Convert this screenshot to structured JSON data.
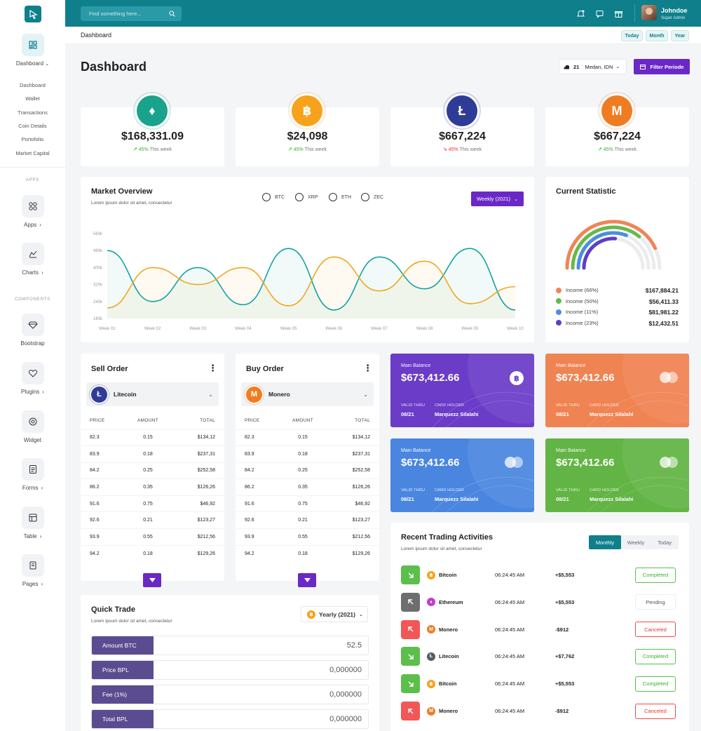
{
  "user": {
    "name": "Johndoe",
    "role": "Super Admin"
  },
  "search": {
    "placeholder": "Find something here..."
  },
  "breadcrumb": "Dashboard",
  "range_tabs": [
    "Today",
    "Month",
    "Year"
  ],
  "page_title": "Dashboard",
  "weather": {
    "temp": "21",
    "location": "Medan, IDN"
  },
  "filter_label": "Filter Periode",
  "sidebar": {
    "main_label": "Dashboard",
    "sub_items": [
      "Dashboard",
      "Wallet",
      "Transactions",
      "Coin Details",
      "Portofolio",
      "Market Capital"
    ],
    "apps_heading": "APPS",
    "components_heading": "COMPONENTS",
    "items": [
      {
        "label": "Apps",
        "icon": "apps-icon"
      },
      {
        "label": "Charts",
        "icon": "chart-icon"
      },
      {
        "label": "Bootstrap",
        "icon": "gem-icon"
      },
      {
        "label": "Plugins",
        "icon": "heart-icon"
      },
      {
        "label": "Widget",
        "icon": "widget-icon"
      },
      {
        "label": "Forms",
        "icon": "form-icon"
      },
      {
        "label": "Table",
        "icon": "table-icon"
      },
      {
        "label": "Pages",
        "icon": "pages-icon"
      }
    ]
  },
  "coins": [
    {
      "value": "$168,331.09",
      "change": "45%",
      "suffix": "This week",
      "trend": "up",
      "color": "#1aa38c",
      "icon": "ethereum-icon"
    },
    {
      "value": "$24,098",
      "change": "45%",
      "suffix": "This week",
      "trend": "up",
      "color": "#f7a21b",
      "icon": "bitcoin-icon"
    },
    {
      "value": "$667,224",
      "change": "45%",
      "suffix": "This week",
      "trend": "down",
      "color": "#2f3c97",
      "icon": "litecoin-icon"
    },
    {
      "value": "$667,224",
      "change": "45%",
      "suffix": "This week",
      "trend": "up",
      "color": "#f07c22",
      "icon": "monero-icon"
    }
  ],
  "market_overview": {
    "title": "Market Overview",
    "subtitle": "Lorem ipsum dolor sit amet, consectetur",
    "options": [
      "BTC",
      "XRP",
      "ETH",
      "ZEC"
    ],
    "period": "Weekly (2021)"
  },
  "chart_data": {
    "type": "line",
    "x": [
      "Week 01",
      "Week 02",
      "Week 03",
      "Week 04",
      "Week 05",
      "Week 06",
      "Week 07",
      "Week 08",
      "Week 09",
      "Week 10"
    ],
    "yticks": [
      "160k",
      "240k",
      "320k",
      "400k",
      "480k",
      "560k"
    ],
    "ylim": [
      160,
      560
    ],
    "series": [
      {
        "color": "#12a3a0",
        "values": [
          480,
          240,
          400,
          225,
          490,
          200,
          450,
          300,
          490,
          200
        ]
      },
      {
        "color": "#f0a61e",
        "values": [
          210,
          400,
          320,
          400,
          220,
          450,
          290,
          430,
          230,
          310
        ]
      }
    ]
  },
  "current_statistic": {
    "title": "Current Statistic",
    "items": [
      {
        "label": "Income (66%)",
        "value": "$167,884.21",
        "color": "#f08458",
        "pct": 66
      },
      {
        "label": "Income (50%)",
        "value": "$56,411.33",
        "color": "#69b84a",
        "pct": 50
      },
      {
        "label": "Income (11%)",
        "value": "$81,981.22",
        "color": "#4a8fe0",
        "pct": 11
      },
      {
        "label": "Income (23%)",
        "value": "$12,432.51",
        "color": "#5e3ec4",
        "pct": 23
      }
    ]
  },
  "sell_order": {
    "title": "Sell Order",
    "coin": "Litecoin",
    "headers": [
      "PRICE",
      "AMOUNT",
      "TOTAL"
    ],
    "rows": [
      [
        "82.3",
        "0.15",
        "$134,12"
      ],
      [
        "83.9",
        "0.18",
        "$237,31"
      ],
      [
        "84.2",
        "0.25",
        "$252,58"
      ],
      [
        "86.2",
        "0.35",
        "$126,26"
      ],
      [
        "91.6",
        "0.75",
        "$46,92"
      ],
      [
        "92.6",
        "0.21",
        "$123,27"
      ],
      [
        "93.9",
        "0.55",
        "$212,56"
      ],
      [
        "94.2",
        "0.18",
        "$129,26"
      ]
    ]
  },
  "buy_order": {
    "title": "Buy Order",
    "coin": "Monero",
    "headers": [
      "PRICE",
      "AMOUNT",
      "TOTAL"
    ],
    "rows": [
      [
        "82.3",
        "0.15",
        "$134,12"
      ],
      [
        "83.9",
        "0.18",
        "$237,31"
      ],
      [
        "84.2",
        "0.25",
        "$252,58"
      ],
      [
        "86.2",
        "0.35",
        "$126,26"
      ],
      [
        "91.6",
        "0.75",
        "$46,92"
      ],
      [
        "92.6",
        "0.21",
        "$123,27"
      ],
      [
        "93.9",
        "0.55",
        "$212,56"
      ],
      [
        "94.2",
        "0.18",
        "$129,26"
      ]
    ]
  },
  "balances": [
    {
      "label": "Main Balance",
      "value": "$673,412.66",
      "valid_label": "VALID THRU",
      "valid": "08/21",
      "holder_label": "CARD HOLDER",
      "holder": "Marquezz Silalahi",
      "color": "#6a3cc8",
      "icon": "bitcoin-icon"
    },
    {
      "label": "Main Balance",
      "value": "$673,412.66",
      "valid_label": "VALID THRU",
      "valid": "08/21",
      "holder_label": "CARD HOLDER",
      "holder": "Marquezz Silalahi",
      "color": "#f08352",
      "icon": "mastercard-icon"
    },
    {
      "label": "Main Balance",
      "value": "$673,412.66",
      "valid_label": "VALID THRU",
      "valid": "08/21",
      "holder_label": "CARD HOLDER",
      "holder": "Marquezz Silalahi",
      "color": "#4a86df",
      "icon": "mastercard-icon"
    },
    {
      "label": "Main Balance",
      "value": "$673,412.66",
      "valid_label": "VALID THRU",
      "valid": "08/21",
      "holder_label": "CARD HOLDER",
      "holder": "Marquezz Silalahi",
      "color": "#62b444",
      "icon": "mastercard-icon"
    }
  ],
  "quick_trade": {
    "title": "Quick Trade",
    "subtitle": "Lorem ipsum dolor sit amet, consectetur",
    "period": "Yearly (2021)",
    "rows": [
      {
        "label": "Amount BTC",
        "value": "52.5"
      },
      {
        "label": "Price BPL",
        "value": "0,000000"
      },
      {
        "label": "Fee (1%)",
        "value": "0,000000"
      },
      {
        "label": "Total BPL",
        "value": "0,000000"
      }
    ]
  },
  "trading": {
    "title": "Recent Trading Activities",
    "subtitle": "Lorem ipsum dolor sit amet, consectetur",
    "tabs": [
      "Monthly",
      "Weekly",
      "Today"
    ],
    "rows": [
      {
        "dir": "down",
        "coin": "Bitcoin",
        "coin_color": "#f7a21b",
        "time": "06:24:45 AM",
        "amount": "+$5,553",
        "status": "Completed",
        "icon_color": "#5cbf4b"
      },
      {
        "dir": "up",
        "coin": "Ethereum",
        "coin_color": "#c23bd1",
        "time": "06:24:45 AM",
        "amount": "+$5,553",
        "status": "Pending",
        "icon_color": "#6e6e6e"
      },
      {
        "dir": "up",
        "coin": "Monero",
        "coin_color": "#f07c22",
        "time": "06:24:45 AM",
        "amount": "-$912",
        "status": "Canceled",
        "icon_color": "#f25656"
      },
      {
        "dir": "down",
        "coin": "Litecoin",
        "coin_color": "#555b66",
        "time": "06:24:45 AM",
        "amount": "+$7,762",
        "status": "Completed",
        "icon_color": "#5cbf4b"
      },
      {
        "dir": "down",
        "coin": "Bitcoin",
        "coin_color": "#f7a21b",
        "time": "06:24:45 AM",
        "amount": "+$5,553",
        "status": "Completed",
        "icon_color": "#5cbf4b"
      },
      {
        "dir": "up",
        "coin": "Monero",
        "coin_color": "#f07c22",
        "time": "06:24:45 AM",
        "amount": "-$912",
        "status": "Canceled",
        "icon_color": "#f25656"
      }
    ]
  }
}
